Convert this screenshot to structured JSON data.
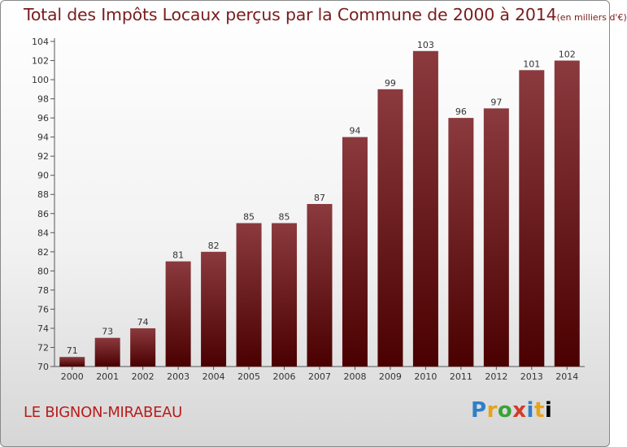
{
  "header": {
    "title": "Total des Impôts Locaux perçus par la Commune de 2000 à 2014",
    "unit": "(en milliers d'€)"
  },
  "footer": {
    "commune": "LE BIGNON-MIRABEAU",
    "brand": [
      "P",
      "r",
      "o",
      "x",
      "i",
      "t",
      "i"
    ]
  },
  "colors": {
    "bar_top": "#8b3a3e",
    "bar_bottom": "#4a0000",
    "title": "#7a1c1c",
    "commune": "#b81d1d"
  },
  "chart_data": {
    "type": "bar",
    "title": "Total des Impôts Locaux perçus par la Commune de 2000 à 2014 (en milliers d'€)",
    "xlabel": "",
    "ylabel": "",
    "categories": [
      "2000",
      "2001",
      "2002",
      "2003",
      "2004",
      "2005",
      "2006",
      "2007",
      "2008",
      "2009",
      "2010",
      "2011",
      "2012",
      "2013",
      "2014"
    ],
    "values": [
      71,
      73,
      74,
      81,
      82,
      85,
      85,
      87,
      94,
      99,
      103,
      96,
      97,
      101,
      102
    ],
    "ylim": [
      70,
      104
    ],
    "yticks": [
      70,
      72,
      74,
      76,
      78,
      80,
      82,
      84,
      86,
      88,
      90,
      92,
      94,
      96,
      98,
      100,
      102,
      104
    ],
    "grid": false,
    "legend": "none"
  }
}
